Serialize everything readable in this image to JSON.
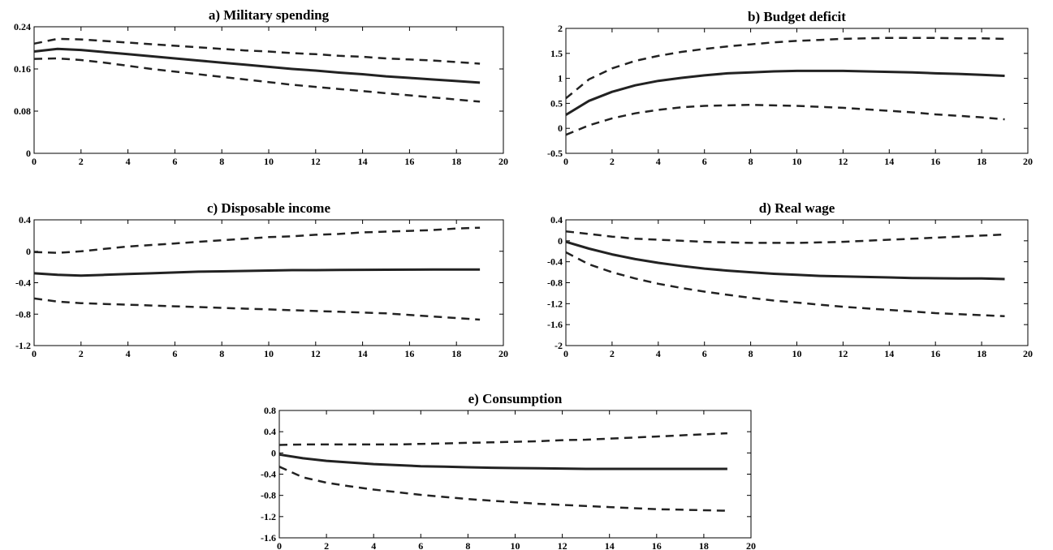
{
  "chart_data": [
    {
      "type": "line",
      "title": "a) Military spending",
      "x": [
        0,
        1,
        2,
        3,
        4,
        5,
        6,
        7,
        8,
        9,
        10,
        11,
        12,
        13,
        14,
        15,
        16,
        17,
        18,
        19
      ],
      "xlim": [
        0,
        20
      ],
      "xticks": [
        "0",
        "2",
        "4",
        "6",
        "8",
        "10",
        "12",
        "14",
        "16",
        "18",
        "20"
      ],
      "ylim": [
        0,
        0.24
      ],
      "yticks": [
        {
          "value": 0,
          "label": "0"
        },
        {
          "value": 0.08,
          "label": "0.08"
        },
        {
          "value": 0.16,
          "label": "0.16"
        },
        {
          "value": 0.24,
          "label": "0.24"
        }
      ],
      "series": [
        {
          "style": "dashed",
          "values": [
            0.208,
            0.217,
            0.216,
            0.213,
            0.21,
            0.207,
            0.204,
            0.201,
            0.198,
            0.195,
            0.193,
            0.19,
            0.188,
            0.185,
            0.183,
            0.18,
            0.178,
            0.176,
            0.173,
            0.17
          ]
        },
        {
          "style": "solid",
          "values": [
            0.193,
            0.198,
            0.196,
            0.192,
            0.188,
            0.184,
            0.18,
            0.176,
            0.172,
            0.168,
            0.164,
            0.16,
            0.157,
            0.153,
            0.15,
            0.146,
            0.143,
            0.14,
            0.137,
            0.134
          ]
        },
        {
          "style": "dashed",
          "values": [
            0.179,
            0.18,
            0.177,
            0.172,
            0.166,
            0.16,
            0.155,
            0.15,
            0.145,
            0.14,
            0.135,
            0.13,
            0.126,
            0.122,
            0.118,
            0.114,
            0.11,
            0.106,
            0.102,
            0.098
          ]
        }
      ]
    },
    {
      "type": "line",
      "title": "b) Budget deficit",
      "x": [
        0,
        1,
        2,
        3,
        4,
        5,
        6,
        7,
        8,
        9,
        10,
        11,
        12,
        13,
        14,
        15,
        16,
        17,
        18,
        19
      ],
      "xlim": [
        0,
        20
      ],
      "xticks": [
        "0",
        "2",
        "4",
        "6",
        "8",
        "10",
        "12",
        "14",
        "16",
        "18",
        "20"
      ],
      "ylim": [
        -0.5,
        2
      ],
      "yticks": [
        {
          "value": -0.5,
          "label": "-0.5"
        },
        {
          "value": 0,
          "label": "0"
        },
        {
          "value": 0.5,
          "label": "0.5"
        },
        {
          "value": 1,
          "label": "1"
        },
        {
          "value": 1.5,
          "label": "1.5"
        },
        {
          "value": 2,
          "label": "2"
        }
      ],
      "series": [
        {
          "style": "dashed",
          "values": [
            0.6,
            0.98,
            1.2,
            1.35,
            1.45,
            1.53,
            1.59,
            1.64,
            1.68,
            1.72,
            1.75,
            1.77,
            1.79,
            1.8,
            1.81,
            1.81,
            1.81,
            1.8,
            1.8,
            1.79
          ]
        },
        {
          "style": "solid",
          "values": [
            0.27,
            0.55,
            0.73,
            0.86,
            0.95,
            1.01,
            1.06,
            1.1,
            1.12,
            1.14,
            1.15,
            1.15,
            1.15,
            1.14,
            1.13,
            1.12,
            1.1,
            1.09,
            1.07,
            1.05
          ]
        },
        {
          "style": "dashed",
          "values": [
            -0.13,
            0.06,
            0.2,
            0.3,
            0.37,
            0.42,
            0.45,
            0.46,
            0.47,
            0.46,
            0.45,
            0.43,
            0.41,
            0.38,
            0.35,
            0.32,
            0.28,
            0.25,
            0.22,
            0.18
          ]
        }
      ]
    },
    {
      "type": "line",
      "title": "c) Disposable income",
      "x": [
        0,
        1,
        2,
        3,
        4,
        5,
        6,
        7,
        8,
        9,
        10,
        11,
        12,
        13,
        14,
        15,
        16,
        17,
        18,
        19
      ],
      "xlim": [
        0,
        20
      ],
      "xticks": [
        "0",
        "2",
        "4",
        "6",
        "8",
        "10",
        "12",
        "14",
        "16",
        "18",
        "20"
      ],
      "ylim": [
        -1.2,
        0.4
      ],
      "yticks": [
        {
          "value": -1.2,
          "label": "-1.2"
        },
        {
          "value": -0.8,
          "label": "-0.8"
        },
        {
          "value": -0.4,
          "label": "-0.4"
        },
        {
          "value": 0,
          "label": "0"
        },
        {
          "value": 0.4,
          "label": "0.4"
        }
      ],
      "series": [
        {
          "style": "dashed",
          "values": [
            -0.01,
            -0.02,
            0.0,
            0.03,
            0.06,
            0.08,
            0.1,
            0.12,
            0.14,
            0.16,
            0.18,
            0.19,
            0.21,
            0.22,
            0.24,
            0.25,
            0.26,
            0.27,
            0.29,
            0.3
          ]
        },
        {
          "style": "solid",
          "values": [
            -0.28,
            -0.3,
            -0.31,
            -0.3,
            -0.29,
            -0.28,
            -0.27,
            -0.26,
            -0.255,
            -0.25,
            -0.245,
            -0.24,
            -0.24,
            -0.238,
            -0.236,
            -0.235,
            -0.234,
            -0.233,
            -0.233,
            -0.232
          ]
        },
        {
          "style": "dashed",
          "values": [
            -0.6,
            -0.64,
            -0.66,
            -0.67,
            -0.68,
            -0.69,
            -0.7,
            -0.71,
            -0.72,
            -0.73,
            -0.74,
            -0.75,
            -0.76,
            -0.77,
            -0.78,
            -0.79,
            -0.81,
            -0.83,
            -0.85,
            -0.87
          ]
        }
      ]
    },
    {
      "type": "line",
      "title": "d) Real wage",
      "x": [
        0,
        1,
        2,
        3,
        4,
        5,
        6,
        7,
        8,
        9,
        10,
        11,
        12,
        13,
        14,
        15,
        16,
        17,
        18,
        19
      ],
      "xlim": [
        0,
        20
      ],
      "xticks": [
        "0",
        "2",
        "4",
        "6",
        "8",
        "10",
        "12",
        "14",
        "16",
        "18",
        "20"
      ],
      "ylim": [
        -2,
        0.4
      ],
      "yticks": [
        {
          "value": -2,
          "label": "-2"
        },
        {
          "value": -1.6,
          "label": "-1.6"
        },
        {
          "value": -1.2,
          "label": "-1.2"
        },
        {
          "value": -0.8,
          "label": "-0.8"
        },
        {
          "value": -0.4,
          "label": "-0.4"
        },
        {
          "value": 0,
          "label": "0"
        },
        {
          "value": 0.4,
          "label": "0.4"
        }
      ],
      "series": [
        {
          "style": "dashed",
          "values": [
            0.18,
            0.13,
            0.08,
            0.04,
            0.02,
            0.0,
            -0.02,
            -0.03,
            -0.04,
            -0.04,
            -0.04,
            -0.03,
            -0.02,
            0.0,
            0.02,
            0.04,
            0.06,
            0.08,
            0.1,
            0.12
          ]
        },
        {
          "style": "solid",
          "values": [
            -0.02,
            -0.15,
            -0.26,
            -0.35,
            -0.42,
            -0.48,
            -0.53,
            -0.57,
            -0.6,
            -0.63,
            -0.65,
            -0.67,
            -0.68,
            -0.69,
            -0.7,
            -0.71,
            -0.715,
            -0.72,
            -0.72,
            -0.73
          ]
        },
        {
          "style": "dashed",
          "values": [
            -0.22,
            -0.45,
            -0.6,
            -0.72,
            -0.82,
            -0.9,
            -0.97,
            -1.03,
            -1.09,
            -1.14,
            -1.18,
            -1.22,
            -1.26,
            -1.29,
            -1.32,
            -1.35,
            -1.38,
            -1.4,
            -1.42,
            -1.44
          ]
        }
      ]
    },
    {
      "type": "line",
      "title": "e) Consumption",
      "x": [
        0,
        1,
        2,
        3,
        4,
        5,
        6,
        7,
        8,
        9,
        10,
        11,
        12,
        13,
        14,
        15,
        16,
        17,
        18,
        19
      ],
      "xlim": [
        0,
        20
      ],
      "xticks": [
        "0",
        "2",
        "4",
        "6",
        "8",
        "10",
        "12",
        "14",
        "16",
        "18",
        "20"
      ],
      "ylim": [
        -1.6,
        0.8
      ],
      "yticks": [
        {
          "value": -1.6,
          "label": "-1.6"
        },
        {
          "value": -1.2,
          "label": "-1.2"
        },
        {
          "value": -0.8,
          "label": "-0.8"
        },
        {
          "value": -0.4,
          "label": "-0.4"
        },
        {
          "value": 0,
          "label": "0"
        },
        {
          "value": 0.4,
          "label": "0.4"
        },
        {
          "value": 0.8,
          "label": "0.8"
        }
      ],
      "series": [
        {
          "style": "dashed",
          "values": [
            0.15,
            0.16,
            0.16,
            0.16,
            0.16,
            0.16,
            0.17,
            0.18,
            0.19,
            0.2,
            0.21,
            0.22,
            0.24,
            0.25,
            0.27,
            0.29,
            0.31,
            0.33,
            0.35,
            0.37
          ]
        },
        {
          "style": "solid",
          "values": [
            -0.03,
            -0.1,
            -0.15,
            -0.18,
            -0.21,
            -0.23,
            -0.25,
            -0.26,
            -0.27,
            -0.28,
            -0.285,
            -0.29,
            -0.295,
            -0.3,
            -0.3,
            -0.3,
            -0.3,
            -0.3,
            -0.3,
            -0.3
          ]
        },
        {
          "style": "dashed",
          "values": [
            -0.26,
            -0.46,
            -0.56,
            -0.63,
            -0.69,
            -0.74,
            -0.79,
            -0.83,
            -0.87,
            -0.9,
            -0.93,
            -0.96,
            -0.98,
            -1.0,
            -1.02,
            -1.04,
            -1.06,
            -1.07,
            -1.08,
            -1.09
          ]
        }
      ]
    }
  ]
}
